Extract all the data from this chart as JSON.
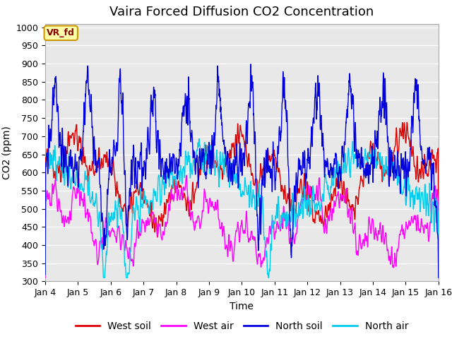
{
  "title": "Vaira Forced Diffusion CO2 Concentration",
  "xlabel": "Time",
  "ylabel": "CO2 (ppm)",
  "ylim": [
    300,
    1010
  ],
  "yticks": [
    300,
    350,
    400,
    450,
    500,
    550,
    600,
    650,
    700,
    750,
    800,
    850,
    900,
    950,
    1000
  ],
  "xtick_labels": [
    "Jan 4",
    "Jan 5",
    "Jan 6",
    "Jan 7",
    "Jan 8",
    "Jan 9",
    "Jan 10",
    "Jan 11",
    "Jan 12",
    "Jan 13",
    "Jan 14",
    "Jan 15",
    "Jan 16"
  ],
  "series_colors": {
    "west_soil": "#dd0000",
    "west_air": "#ff00ff",
    "north_soil": "#0000dd",
    "north_air": "#00ccee"
  },
  "series_labels": [
    "West soil",
    "West air",
    "North soil",
    "North air"
  ],
  "legend_colors": [
    "#dd0000",
    "#ff00ff",
    "#0000dd",
    "#00ccee"
  ],
  "plot_bg_color": "#e8e8e8",
  "fig_bg_color": "#ffffff",
  "annotation_text": "VR_fd",
  "annotation_box_color": "#ffffaa",
  "annotation_border_color": "#cc9900",
  "title_fontsize": 13,
  "axis_label_fontsize": 10,
  "tick_fontsize": 9,
  "legend_fontsize": 10,
  "linewidth": 1.0,
  "n_points": 2880
}
